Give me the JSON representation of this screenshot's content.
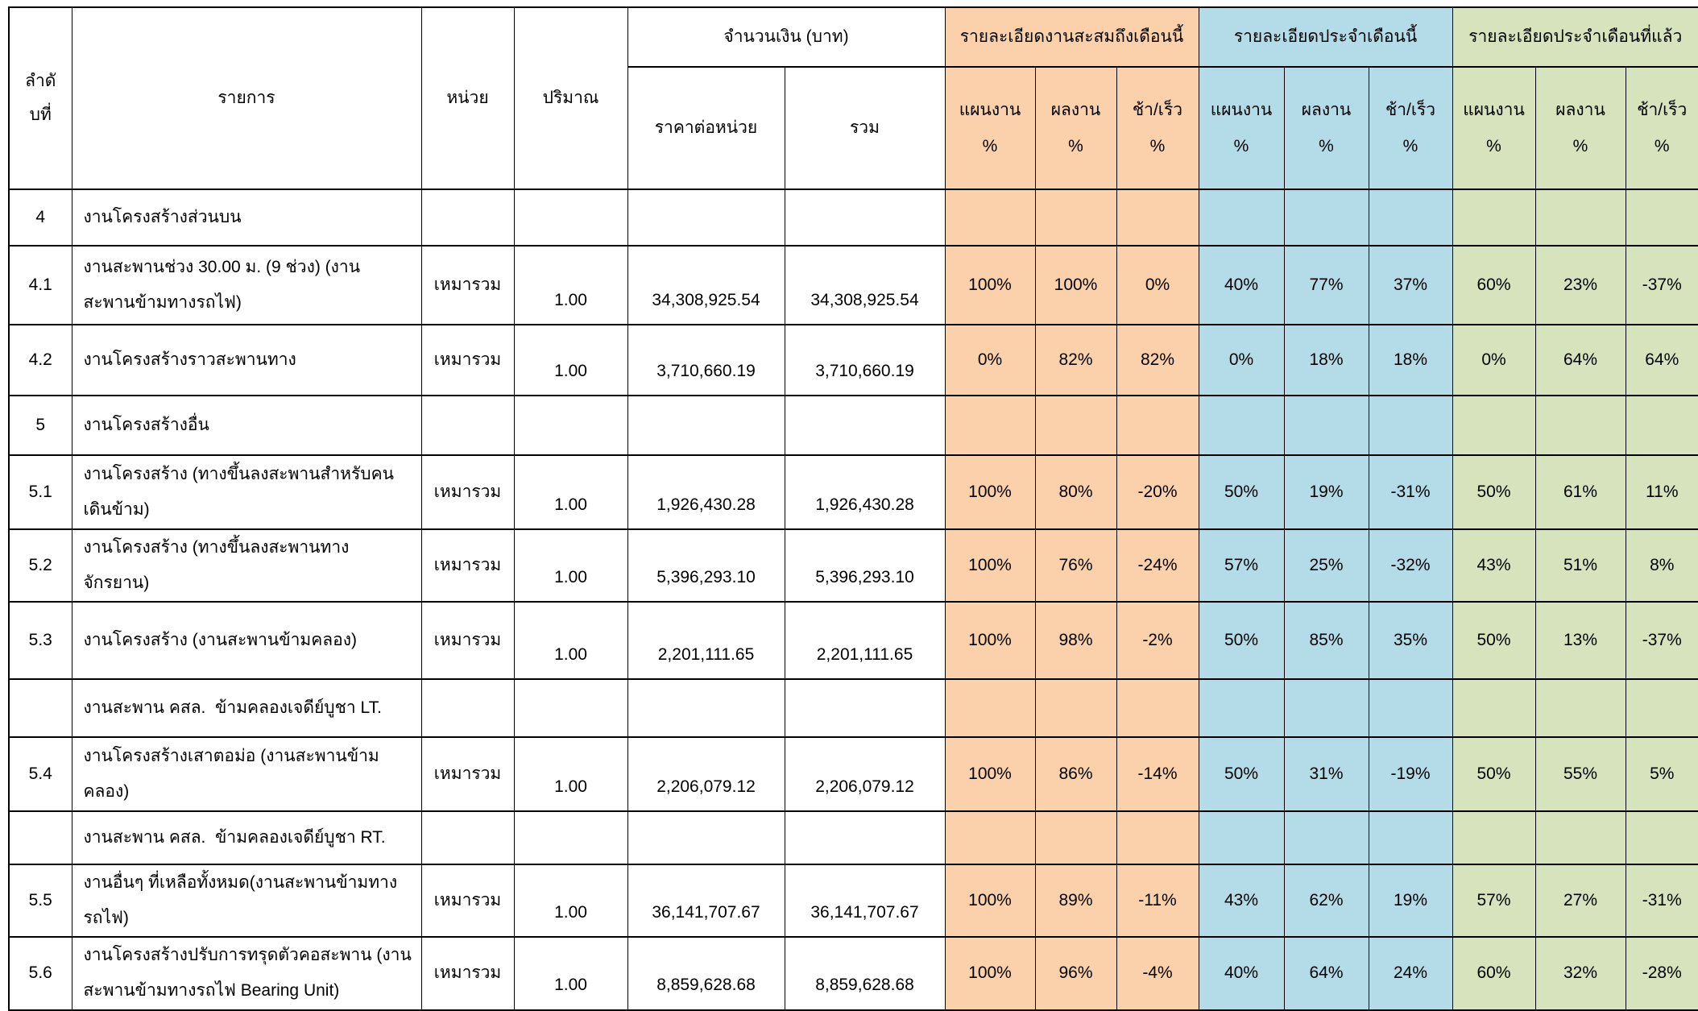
{
  "table": {
    "colors": {
      "cumulative_bg": "#FAD1AB",
      "current_month_bg": "#B4DBE8",
      "previous_month_bg": "#D7E3BC"
    },
    "headers": {
      "no": "ลำดั\nบที่",
      "item": "รายการ",
      "unit": "หน่วย",
      "qty": "ปริมาณ",
      "amount_group": "จำนวนเงิน (บาท)",
      "unit_price": "ราคาต่อหน่วย",
      "total": "รวม",
      "cumulative_group": "รายละเอียดงานสะสมถึงเดือนนี้",
      "current_month_group": "รายละเอียดประจำเดือนนี้",
      "previous_month_group": "รายละเอียดประจำเดือนที่แล้ว",
      "plan": "แผนงาน\n%",
      "actual": "ผลงาน\n%",
      "diff": "ช้า/เร็ว\n%"
    },
    "rows": [
      {
        "no": "4",
        "item": "งานโครงสร้างส่วนบน",
        "unit": "",
        "qty": "",
        "unit_price": "",
        "total": "",
        "cum_plan": "",
        "cum_actual": "",
        "cum_diff": "",
        "mon_plan": "",
        "mon_actual": "",
        "mon_diff": "",
        "prev_plan": "",
        "prev_actual": "",
        "prev_diff": ""
      },
      {
        "no": "4.1",
        "item": "งานสะพานช่วง 30.00 ม. (9 ช่วง) (งาน\nสะพานข้ามทางรถไฟ)",
        "unit": "เหมารวม",
        "qty": "1.00",
        "unit_price": "34,308,925.54",
        "total": "34,308,925.54",
        "cum_plan": "100%",
        "cum_actual": "100%",
        "cum_diff": "0%",
        "mon_plan": "40%",
        "mon_actual": "77%",
        "mon_diff": "37%",
        "prev_plan": "60%",
        "prev_actual": "23%",
        "prev_diff": "-37%"
      },
      {
        "no": "4.2",
        "item": "งานโครงสร้างราวสะพานทาง",
        "unit": "เหมารวม",
        "qty": "1.00",
        "unit_price": "3,710,660.19",
        "total": "3,710,660.19",
        "cum_plan": "0%",
        "cum_actual": "82%",
        "cum_diff": "82%",
        "mon_plan": "0%",
        "mon_actual": "18%",
        "mon_diff": "18%",
        "prev_plan": "0%",
        "prev_actual": "64%",
        "prev_diff": "64%"
      },
      {
        "no": "5",
        "item": "งานโครงสร้างอื่น",
        "unit": "",
        "qty": "",
        "unit_price": "",
        "total": "",
        "cum_plan": "",
        "cum_actual": "",
        "cum_diff": "",
        "mon_plan": "",
        "mon_actual": "",
        "mon_diff": "",
        "prev_plan": "",
        "prev_actual": "",
        "prev_diff": ""
      },
      {
        "no": "5.1",
        "item": "งานโครงสร้าง (ทางขึ้นลงสะพานสำหรับคน\nเดินข้าม)",
        "unit": "เหมารวม",
        "qty": "1.00",
        "unit_price": "1,926,430.28",
        "total": "1,926,430.28",
        "cum_plan": "100%",
        "cum_actual": "80%",
        "cum_diff": "-20%",
        "mon_plan": "50%",
        "mon_actual": "19%",
        "mon_diff": "-31%",
        "prev_plan": "50%",
        "prev_actual": "61%",
        "prev_diff": "11%"
      },
      {
        "no": "5.2",
        "item": "งานโครงสร้าง (ทางขึ้นลงสะพานทางจักรยาน)",
        "unit": "เหมารวม",
        "qty": "1.00",
        "unit_price": "5,396,293.10",
        "total": "5,396,293.10",
        "cum_plan": "100%",
        "cum_actual": "76%",
        "cum_diff": "-24%",
        "mon_plan": "57%",
        "mon_actual": "25%",
        "mon_diff": "-32%",
        "prev_plan": "43%",
        "prev_actual": "51%",
        "prev_diff": "8%"
      },
      {
        "no": "5.3",
        "item": "งานโครงสร้าง (งานสะพานข้ามคลอง)",
        "unit": "เหมารวม",
        "qty": "1.00",
        "unit_price": "2,201,111.65",
        "total": "2,201,111.65",
        "cum_plan": "100%",
        "cum_actual": "98%",
        "cum_diff": "-2%",
        "mon_plan": "50%",
        "mon_actual": "85%",
        "mon_diff": "35%",
        "prev_plan": "50%",
        "prev_actual": "13%",
        "prev_diff": "-37%"
      },
      {
        "no": "",
        "item": "งานสะพาน คสล.  ข้ามคลองเจดีย์บูชา LT.",
        "unit": "",
        "qty": "",
        "unit_price": "",
        "total": "",
        "cum_plan": "",
        "cum_actual": "",
        "cum_diff": "",
        "mon_plan": "",
        "mon_actual": "",
        "mon_diff": "",
        "prev_plan": "",
        "prev_actual": "",
        "prev_diff": ""
      },
      {
        "no": "5.4",
        "item": "งานโครงสร้างเสาตอม่อ (งานสะพานข้าม\nคลอง)",
        "unit": "เหมารวม",
        "qty": "1.00",
        "unit_price": "2,206,079.12",
        "total": "2,206,079.12",
        "cum_plan": "100%",
        "cum_actual": "86%",
        "cum_diff": "-14%",
        "mon_plan": "50%",
        "mon_actual": "31%",
        "mon_diff": "-19%",
        "prev_plan": "50%",
        "prev_actual": "55%",
        "prev_diff": "5%"
      },
      {
        "no": "",
        "item": "งานสะพาน คสล.  ข้ามคลองเจดีย์บูชา RT.",
        "unit": "",
        "qty": "",
        "unit_price": "",
        "total": "",
        "cum_plan": "",
        "cum_actual": "",
        "cum_diff": "",
        "mon_plan": "",
        "mon_actual": "",
        "mon_diff": "",
        "prev_plan": "",
        "prev_actual": "",
        "prev_diff": ""
      },
      {
        "no": "5.5",
        "item": "งานอื่นๆ ที่เหลือทั้งหมด(งานสะพานข้ามทาง\nรถไฟ)",
        "unit": "เหมารวม",
        "qty": "1.00",
        "unit_price": "36,141,707.67",
        "total": "36,141,707.67",
        "cum_plan": "100%",
        "cum_actual": "89%",
        "cum_diff": "-11%",
        "mon_plan": "43%",
        "mon_actual": "62%",
        "mon_diff": "19%",
        "prev_plan": "57%",
        "prev_actual": "27%",
        "prev_diff": "-31%"
      },
      {
        "no": "5.6",
        "item": "งานโครงสร้างปรับการทรุดตัวคอสะพาน (งาน\nสะพานข้ามทางรถไฟ Bearing Unit)",
        "unit": "เหมารวม",
        "qty": "1.00",
        "unit_price": "8,859,628.68",
        "total": "8,859,628.68",
        "cum_plan": "100%",
        "cum_actual": "96%",
        "cum_diff": "-4%",
        "mon_plan": "40%",
        "mon_actual": "64%",
        "mon_diff": "24%",
        "prev_plan": "60%",
        "prev_actual": "32%",
        "prev_diff": "-28%"
      }
    ]
  }
}
